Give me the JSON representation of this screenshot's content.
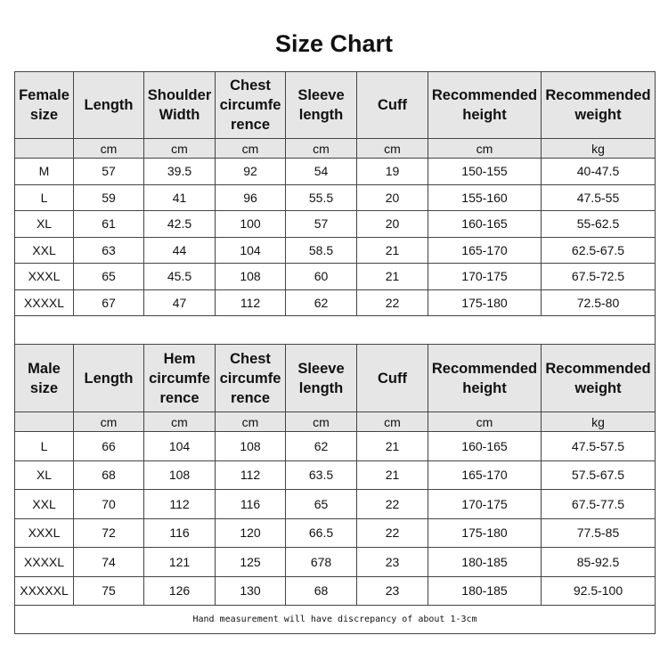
{
  "title": "Size Chart",
  "female": {
    "headers": [
      "Female\nsize",
      "Length",
      "Shoulder\nWidth",
      "Chest\ncircumfe\nrence",
      "Sleeve\nlength",
      "Cuff",
      "Recommended\nheight",
      "Recommended\nweight"
    ],
    "units": [
      "",
      "cm",
      "cm",
      "cm",
      "cm",
      "cm",
      "cm",
      "kg"
    ],
    "rows": [
      [
        "M",
        "57",
        "39.5",
        "92",
        "54",
        "19",
        "150-155",
        "40-47.5"
      ],
      [
        "L",
        "59",
        "41",
        "96",
        "55.5",
        "20",
        "155-160",
        "47.5-55"
      ],
      [
        "XL",
        "61",
        "42.5",
        "100",
        "57",
        "20",
        "160-165",
        "55-62.5"
      ],
      [
        "XXL",
        "63",
        "44",
        "104",
        "58.5",
        "21",
        "165-170",
        "62.5-67.5"
      ],
      [
        "XXXL",
        "65",
        "45.5",
        "108",
        "60",
        "21",
        "170-175",
        "67.5-72.5"
      ],
      [
        "XXXXL",
        "67",
        "47",
        "112",
        "62",
        "22",
        "175-180",
        "72.5-80"
      ]
    ]
  },
  "male": {
    "headers": [
      "Male\nsize",
      "Length",
      "Hem\ncircumfe\nrence",
      "Chest\ncircumfe\nrence",
      "Sleeve\nlength",
      "Cuff",
      "Recommended\nheight",
      "Recommended\nweight"
    ],
    "units": [
      "",
      "cm",
      "cm",
      "cm",
      "cm",
      "cm",
      "cm",
      "kg"
    ],
    "rows": [
      [
        "L",
        "66",
        "104",
        "108",
        "62",
        "21",
        "160-165",
        "47.5-57.5"
      ],
      [
        "XL",
        "68",
        "108",
        "112",
        "63.5",
        "21",
        "165-170",
        "57.5-67.5"
      ],
      [
        "XXL",
        "70",
        "112",
        "116",
        "65",
        "22",
        "170-175",
        "67.5-77.5"
      ],
      [
        "XXXL",
        "72",
        "116",
        "120",
        "66.5",
        "22",
        "175-180",
        "77.5-85"
      ],
      [
        "XXXXL",
        "74",
        "121",
        "125",
        "678",
        "23",
        "180-185",
        "85-92.5"
      ],
      [
        "XXXXXL",
        "75",
        "126",
        "130",
        "68",
        "23",
        "180-185",
        "92.5-100"
      ]
    ]
  },
  "note": "Hand measurement will have discrepancy of about 1-3cm"
}
